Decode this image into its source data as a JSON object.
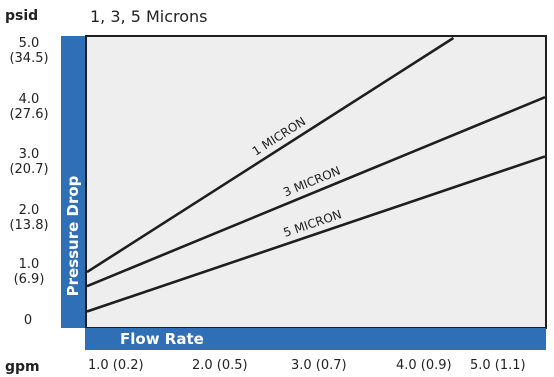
{
  "chart_data": {
    "type": "line",
    "title": "1, 3, 5 Microns",
    "ylabel": "Pressure Drop",
    "xlabel": "Flow Rate",
    "y_unit": "psid",
    "x_unit": "gpm",
    "xlim": [
      1.0,
      5.0
    ],
    "ylim": [
      0,
      5.0
    ],
    "x_ticks": [
      "1.0 (0.2)",
      "2.0 (0.5)",
      "3.0 (0.7)",
      "4.0 (0.9)",
      "5.0 (1.1)"
    ],
    "y_ticks": [
      {
        "value": 5.0,
        "primary": "5.0",
        "secondary": "(34.5)"
      },
      {
        "value": 4.0,
        "primary": "4.0",
        "secondary": "(27.6)"
      },
      {
        "value": 3.0,
        "primary": "3.0",
        "secondary": "(20.7)"
      },
      {
        "value": 2.0,
        "primary": "2.0",
        "secondary": "(13.8)"
      },
      {
        "value": 1.0,
        "primary": "1.0",
        "secondary": "(6.9)"
      },
      {
        "value": 0,
        "primary": "0",
        "secondary": ""
      }
    ],
    "series": [
      {
        "name": "1 MICRON",
        "x": [
          1.0,
          4.2
        ],
        "y": [
          0.85,
          5.0
        ]
      },
      {
        "name": "3 MICRON",
        "x": [
          1.0,
          5.0
        ],
        "y": [
          0.6,
          3.95
        ]
      },
      {
        "name": "5 MICRON",
        "x": [
          1.0,
          5.0
        ],
        "y": [
          0.15,
          2.9
        ]
      }
    ],
    "grid": false,
    "colors": {
      "band": "#2f6fb5",
      "line": "#1e1e1e",
      "plot_bg": "#eeeeee"
    }
  }
}
